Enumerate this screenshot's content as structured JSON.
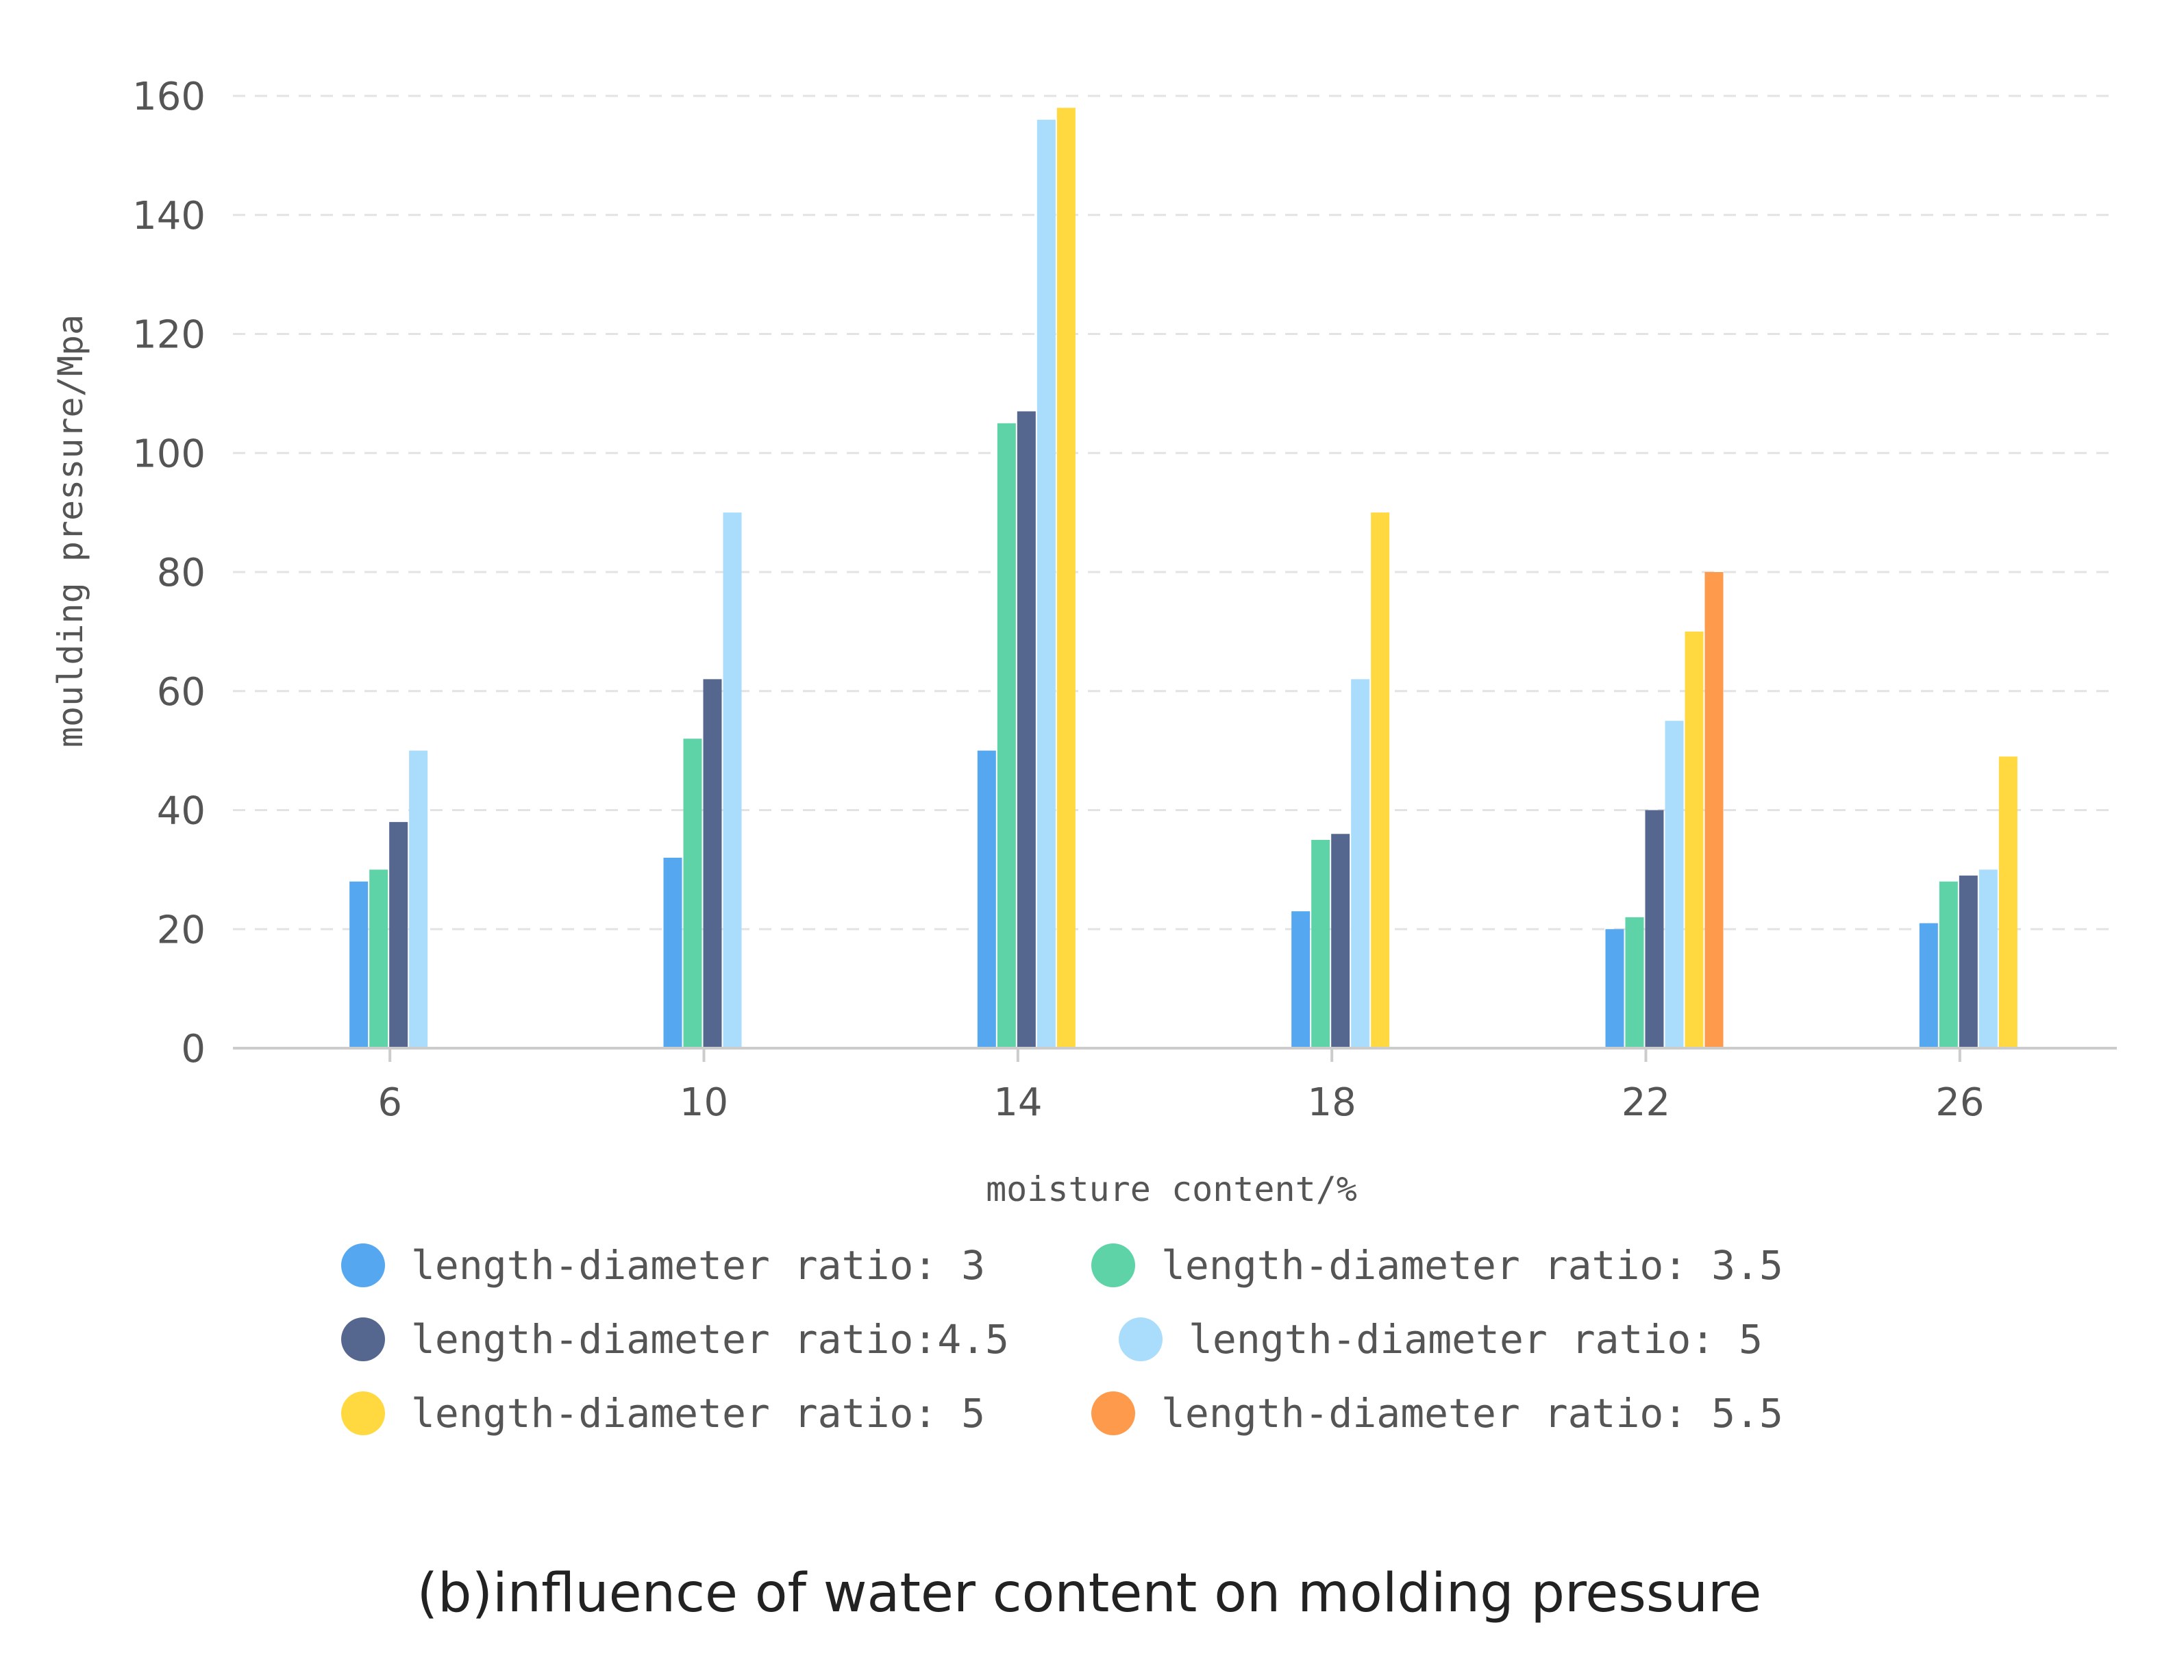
{
  "chart_data": {
    "type": "bar",
    "title": "",
    "xlabel": "moisture content/%",
    "ylabel": "moulding pressure/Mpa",
    "ylim": [
      0,
      160
    ],
    "yticks": [
      "0",
      "20",
      "40",
      "60",
      "80",
      "100",
      "120",
      "140",
      "160"
    ],
    "categories": [
      "6",
      "10",
      "14",
      "18",
      "22",
      "26"
    ],
    "grid": true,
    "legend_position": "bottom",
    "series": [
      {
        "name": "length-diameter ratio: 3",
        "color": "#55a8f0",
        "values": [
          28,
          32,
          50,
          23,
          20,
          21
        ]
      },
      {
        "name": "length-diameter ratio: 3.5",
        "color": "#5fd3a8",
        "values": [
          30,
          52,
          105,
          35,
          22,
          28
        ]
      },
      {
        "name": "length-diameter ratio:4.5",
        "color": "#56678f",
        "values": [
          38,
          62,
          107,
          36,
          40,
          29
        ]
      },
      {
        "name": "length-diameter ratio: 5",
        "color": "#a9ddfb",
        "values": [
          50,
          90,
          156,
          62,
          55,
          30
        ]
      },
      {
        "name": "length-diameter ratio: 5",
        "color": "#ffd93f",
        "values": [
          null,
          null,
          158,
          90,
          70,
          49
        ]
      },
      {
        "name": "length-diameter ratio: 5.5",
        "color": "#fe9a4c",
        "values": [
          null,
          null,
          null,
          null,
          80,
          null
        ]
      }
    ]
  },
  "caption": "(b)influence of water content on molding pressure"
}
